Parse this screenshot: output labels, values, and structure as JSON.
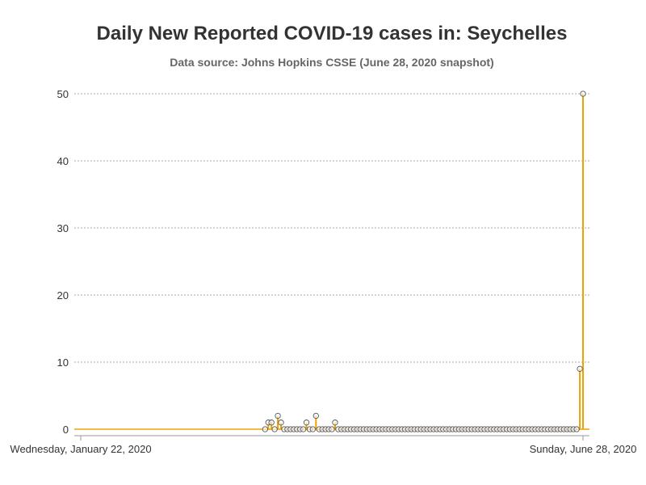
{
  "chart_data": {
    "type": "line",
    "title": "Daily New Reported COVID-19 cases in: Seychelles",
    "subtitle": "Data source: Johns Hopkins CSSE (June 28, 2020 snapshot)",
    "xlabel": "",
    "ylabel": "",
    "x_start": "2020-01-22",
    "x_end": "2020-06-28",
    "xticks": [
      {
        "date": "2020-01-22",
        "label": "Wednesday, January 22, 2020"
      },
      {
        "date": "2020-06-28",
        "label": "Sunday, June 28, 2020"
      }
    ],
    "ylim": [
      0,
      50
    ],
    "yticks": [
      0,
      10,
      20,
      30,
      40,
      50
    ],
    "grid": true,
    "colors": {
      "line": "#f0a202",
      "marker_stroke": "#555555",
      "grid": "#aaaaaa",
      "axis": "#999999"
    },
    "series": [
      {
        "values": [
          0,
          0,
          0,
          0,
          0,
          0,
          0,
          0,
          0,
          0,
          0,
          0,
          0,
          0,
          0,
          0,
          0,
          0,
          0,
          0,
          0,
          0,
          0,
          0,
          0,
          0,
          0,
          0,
          0,
          0,
          0,
          0,
          0,
          0,
          0,
          0,
          0,
          0,
          0,
          0,
          0,
          0,
          0,
          0,
          0,
          0,
          0,
          0,
          0,
          0,
          0,
          0,
          1,
          1,
          0,
          2,
          1,
          0,
          0,
          0,
          0,
          0,
          0,
          0,
          1,
          0,
          0,
          2,
          0,
          0,
          0,
          0,
          0,
          1,
          0,
          0,
          0,
          0,
          0,
          0,
          0,
          0,
          0,
          0,
          0,
          0,
          0,
          0,
          0,
          0,
          0,
          0,
          0,
          0,
          0,
          0,
          0,
          0,
          0,
          0,
          0,
          0,
          0,
          0,
          0,
          0,
          0,
          0,
          0,
          0,
          0,
          0,
          0,
          0,
          0,
          0,
          0,
          0,
          0,
          0,
          0,
          0,
          0,
          0,
          0,
          0,
          0,
          0,
          0,
          0,
          0,
          0,
          0,
          0,
          0,
          0,
          0,
          0,
          0,
          0,
          0,
          0,
          0,
          0,
          0,
          0,
          0,
          0,
          0,
          0,
          9,
          50
        ]
      }
    ]
  }
}
